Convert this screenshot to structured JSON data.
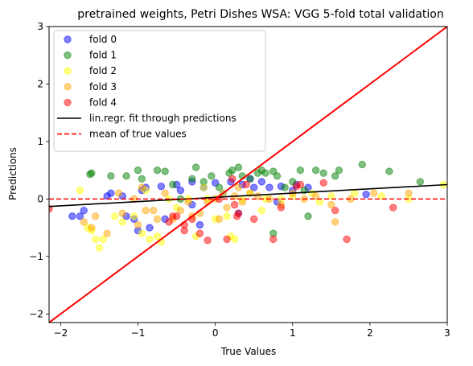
{
  "chart_data": {
    "type": "scatter",
    "title": "pretrained weights, Petri Dishes WSA: VGG 5-fold total validation",
    "xlabel": "True Values",
    "ylabel": "Predictions",
    "xlim": [
      -2.15,
      3.0
    ],
    "ylim": [
      -2.15,
      3.0
    ],
    "xticks": [
      -2,
      -1,
      0,
      1,
      2,
      3
    ],
    "xtick_labels": [
      "−2",
      "−1",
      "0",
      "1",
      "2",
      "3"
    ],
    "yticks": [
      -2,
      -1,
      0,
      1,
      2,
      3
    ],
    "ytick_labels": [
      "−2",
      "−1",
      "0",
      "1",
      "2",
      "3"
    ],
    "grid": false,
    "legend_position": "top-left",
    "series": [
      {
        "name": "fold 0",
        "color": "#0000ff",
        "points": [
          [
            -1.75,
            -0.3
          ],
          [
            -1.7,
            -0.2
          ],
          [
            -1.4,
            0.05
          ],
          [
            -1.35,
            0.1
          ],
          [
            -1.2,
            0.05
          ],
          [
            -1.15,
            -0.3
          ],
          [
            -1.0,
            -0.55
          ],
          [
            -1.05,
            -0.35
          ],
          [
            -0.95,
            0.15
          ],
          [
            -0.9,
            0.2
          ],
          [
            -0.85,
            -0.5
          ],
          [
            -0.7,
            0.22
          ],
          [
            -0.65,
            -0.35
          ],
          [
            -0.5,
            0.25
          ],
          [
            -0.45,
            0.15
          ],
          [
            -0.3,
            0.3
          ],
          [
            -0.2,
            -0.45
          ],
          [
            -0.15,
            0.2
          ],
          [
            0.0,
            0.28
          ],
          [
            0.1,
            0.1
          ],
          [
            0.2,
            0.3
          ],
          [
            0.35,
            0.25
          ],
          [
            0.5,
            0.2
          ],
          [
            0.6,
            0.3
          ],
          [
            0.8,
            -0.05
          ],
          [
            0.85,
            0.22
          ],
          [
            1.0,
            0.15
          ],
          [
            1.05,
            0.25
          ],
          [
            1.2,
            0.2
          ],
          [
            1.95,
            0.08
          ],
          [
            -1.85,
            -0.3
          ],
          [
            -0.3,
            -0.1
          ],
          [
            0.3,
            -0.25
          ],
          [
            0.45,
            0.35
          ],
          [
            0.7,
            0.2
          ]
        ]
      },
      {
        "name": "fold 1",
        "color": "#008000",
        "points": [
          [
            -1.6,
            0.45
          ],
          [
            -1.35,
            0.4
          ],
          [
            -1.15,
            0.4
          ],
          [
            -1.0,
            0.5
          ],
          [
            -0.95,
            0.35
          ],
          [
            -0.75,
            0.5
          ],
          [
            -0.65,
            0.48
          ],
          [
            -0.3,
            0.35
          ],
          [
            -0.25,
            0.55
          ],
          [
            -0.15,
            0.3
          ],
          [
            -0.05,
            0.4
          ],
          [
            0.05,
            0.2
          ],
          [
            0.18,
            0.45
          ],
          [
            0.22,
            0.5
          ],
          [
            0.3,
            0.55
          ],
          [
            0.35,
            0.4
          ],
          [
            0.45,
            0.35
          ],
          [
            0.55,
            0.45
          ],
          [
            0.6,
            0.5
          ],
          [
            0.65,
            0.45
          ],
          [
            0.75,
            0.48
          ],
          [
            0.8,
            0.4
          ],
          [
            1.0,
            0.3
          ],
          [
            1.1,
            0.5
          ],
          [
            1.2,
            -0.3
          ],
          [
            1.3,
            0.5
          ],
          [
            1.4,
            0.45
          ],
          [
            1.55,
            0.4
          ],
          [
            1.6,
            0.5
          ],
          [
            1.9,
            0.6
          ],
          [
            2.25,
            0.48
          ],
          [
            2.65,
            0.3
          ],
          [
            -0.55,
            0.25
          ],
          [
            -0.45,
            0.0
          ],
          [
            0.9,
            0.2
          ],
          [
            0.75,
            -0.6
          ],
          [
            -1.62,
            0.43
          ],
          [
            1.15,
            0.15
          ]
        ]
      },
      {
        "name": "fold 2",
        "color": "#ffff00",
        "points": [
          [
            -1.75,
            0.15
          ],
          [
            -1.65,
            -0.5
          ],
          [
            -1.55,
            -0.7
          ],
          [
            -1.5,
            -0.85
          ],
          [
            -1.45,
            -0.7
          ],
          [
            -1.3,
            -0.3
          ],
          [
            -1.2,
            -0.4
          ],
          [
            -1.05,
            -0.3
          ],
          [
            -0.95,
            -0.6
          ],
          [
            -0.9,
            0.15
          ],
          [
            -0.85,
            -0.7
          ],
          [
            -0.75,
            -0.65
          ],
          [
            -0.7,
            -0.75
          ],
          [
            -0.6,
            0.0
          ],
          [
            -0.5,
            -0.15
          ],
          [
            -0.35,
            0.0
          ],
          [
            -0.25,
            -0.65
          ],
          [
            -0.1,
            0.0
          ],
          [
            0.1,
            0.1
          ],
          [
            0.15,
            -0.3
          ],
          [
            0.2,
            -0.65
          ],
          [
            0.25,
            -0.7
          ],
          [
            0.35,
            0.0
          ],
          [
            0.45,
            0.1
          ],
          [
            0.6,
            -0.2
          ],
          [
            0.85,
            0.0
          ],
          [
            1.0,
            0.05
          ],
          [
            1.25,
            0.1
          ],
          [
            1.5,
            0.05
          ],
          [
            1.8,
            0.1
          ],
          [
            2.15,
            0.05
          ],
          [
            2.5,
            0.0
          ],
          [
            2.95,
            0.25
          ],
          [
            0.0,
            -0.35
          ],
          [
            -0.15,
            0.2
          ],
          [
            0.65,
            0.0
          ],
          [
            1.35,
            -0.05
          ],
          [
            -1.6,
            -0.55
          ]
        ]
      },
      {
        "name": "fold 3",
        "color": "#ffa500",
        "points": [
          [
            -1.7,
            -0.4
          ],
          [
            -1.6,
            -0.5
          ],
          [
            -1.55,
            -0.3
          ],
          [
            -1.4,
            -0.6
          ],
          [
            -1.2,
            -0.25
          ],
          [
            -1.05,
            0.0
          ],
          [
            -1.0,
            -0.45
          ],
          [
            -0.9,
            -0.2
          ],
          [
            -0.8,
            -0.2
          ],
          [
            -0.75,
            -0.35
          ],
          [
            -0.65,
            0.1
          ],
          [
            -0.55,
            -0.35
          ],
          [
            -0.45,
            -0.2
          ],
          [
            -0.35,
            -0.05
          ],
          [
            -0.3,
            -0.3
          ],
          [
            -0.2,
            -0.25
          ],
          [
            -0.1,
            -0.05
          ],
          [
            0.0,
            0.0
          ],
          [
            0.05,
            -0.35
          ],
          [
            0.15,
            -0.15
          ],
          [
            0.25,
            0.05
          ],
          [
            0.35,
            -0.05
          ],
          [
            0.45,
            0.1
          ],
          [
            0.55,
            0.05
          ],
          [
            0.7,
            0.0
          ],
          [
            0.85,
            -0.1
          ],
          [
            1.0,
            0.1
          ],
          [
            1.15,
            0.0
          ],
          [
            1.3,
            0.05
          ],
          [
            1.5,
            -0.1
          ],
          [
            1.55,
            -0.4
          ],
          [
            1.75,
            0.0
          ],
          [
            2.05,
            0.1
          ],
          [
            2.5,
            0.1
          ],
          [
            -0.95,
            0.2
          ],
          [
            -1.25,
            0.1
          ],
          [
            0.3,
            0.2
          ]
        ]
      },
      {
        "name": "fold 4",
        "color": "#ff0000",
        "points": [
          [
            -2.15,
            -0.17
          ],
          [
            -0.6,
            -0.4
          ],
          [
            -0.55,
            -0.3
          ],
          [
            -0.4,
            -0.55
          ],
          [
            -0.4,
            -0.45
          ],
          [
            -0.3,
            -0.35
          ],
          [
            -0.2,
            -0.6
          ],
          [
            -0.1,
            -0.72
          ],
          [
            0.05,
            0.0
          ],
          [
            0.15,
            -0.7
          ],
          [
            0.22,
            0.35
          ],
          [
            0.25,
            -0.1
          ],
          [
            0.28,
            -0.3
          ],
          [
            0.3,
            -0.25
          ],
          [
            0.4,
            0.25
          ],
          [
            0.5,
            -0.35
          ],
          [
            0.75,
            -0.7
          ],
          [
            0.85,
            -0.15
          ],
          [
            1.05,
            0.22
          ],
          [
            1.1,
            0.25
          ],
          [
            1.4,
            0.28
          ],
          [
            1.55,
            -0.2
          ],
          [
            1.7,
            -0.7
          ],
          [
            2.3,
            -0.15
          ],
          [
            -0.5,
            -0.3
          ]
        ]
      }
    ],
    "lines": [
      {
        "name": "lin.regr. fit through predictions",
        "color": "#000000",
        "style": "solid",
        "points": [
          [
            -2.15,
            -0.13
          ],
          [
            3.0,
            0.25
          ]
        ]
      },
      {
        "name": "mean of true values",
        "color": "#ff0000",
        "style": "dashed",
        "points": [
          [
            -2.15,
            0.0
          ],
          [
            3.0,
            0.0
          ]
        ]
      },
      {
        "name": "",
        "color": "#ff0000",
        "style": "solid",
        "points": [
          [
            -2.15,
            -2.15
          ],
          [
            3.0,
            3.0
          ]
        ]
      }
    ]
  }
}
